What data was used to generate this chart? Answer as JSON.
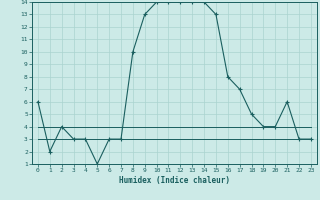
{
  "xlabel": "Humidex (Indice chaleur)",
  "bg_color": "#cceae7",
  "line_color": "#1a5f5f",
  "grid_color": "#aad4d0",
  "xlim": [
    -0.5,
    23.5
  ],
  "ylim": [
    1,
    14
  ],
  "xticks": [
    0,
    1,
    2,
    3,
    4,
    5,
    6,
    7,
    8,
    9,
    10,
    11,
    12,
    13,
    14,
    15,
    16,
    17,
    18,
    19,
    20,
    21,
    22,
    23
  ],
  "yticks": [
    1,
    2,
    3,
    4,
    5,
    6,
    7,
    8,
    9,
    10,
    11,
    12,
    13,
    14
  ],
  "hours": [
    0,
    1,
    2,
    3,
    4,
    5,
    6,
    7,
    8,
    9,
    10,
    11,
    12,
    13,
    14,
    15,
    16,
    17,
    18,
    19,
    20,
    21,
    22,
    23
  ],
  "humidex": [
    6,
    2,
    4,
    3,
    3,
    1,
    3,
    3,
    10,
    13,
    14,
    14,
    14,
    14,
    14,
    13,
    8,
    7,
    5,
    4,
    4,
    6,
    3,
    3
  ],
  "flat_line": [
    3,
    3,
    3,
    3,
    3,
    3,
    3,
    3,
    3,
    3,
    3,
    3,
    3,
    3,
    3,
    3,
    3,
    3,
    3,
    3,
    3,
    3,
    3,
    3
  ],
  "flat_line2": [
    4,
    4,
    4,
    4,
    4,
    4,
    4,
    4,
    4,
    4,
    4,
    4,
    4,
    4,
    4,
    4,
    4,
    4,
    4,
    4,
    4,
    4,
    4,
    4
  ]
}
